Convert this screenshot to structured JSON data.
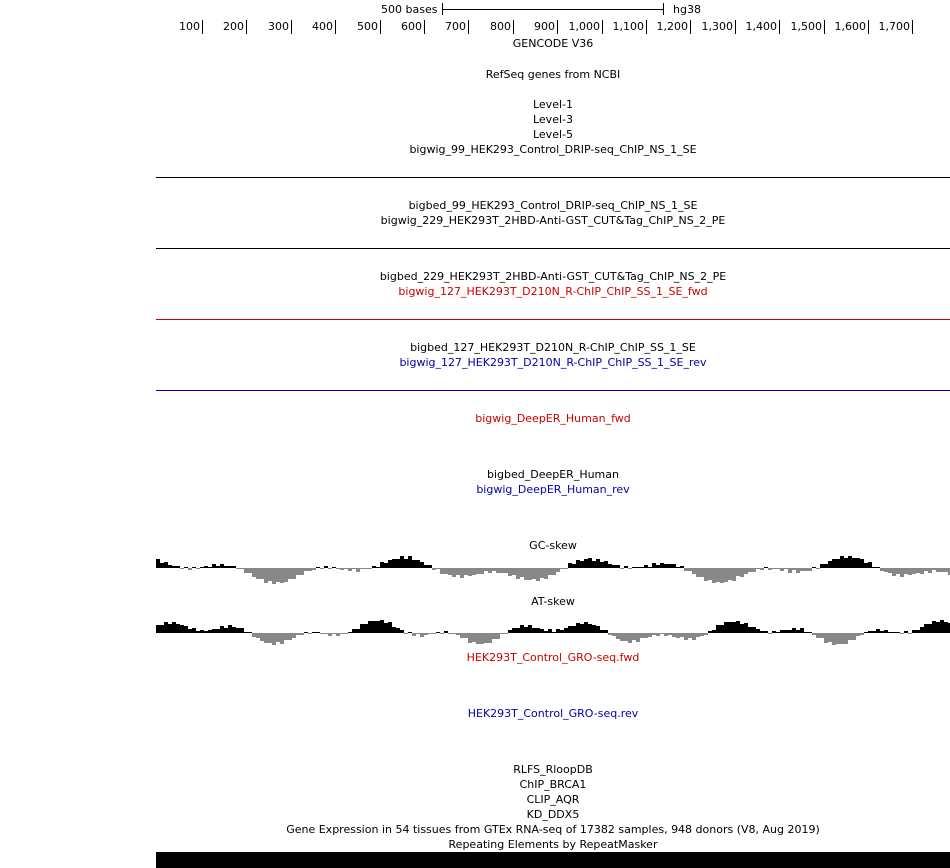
{
  "ruler": {
    "scale_label": "500 bases",
    "assembly": "hg38",
    "ticks": [
      "100",
      "200",
      "300",
      "400",
      "500",
      "600",
      "700",
      "800",
      "900",
      "1,000",
      "1,100",
      "1,200",
      "1,300",
      "1,400",
      "1,500",
      "1,600",
      "1,700"
    ]
  },
  "tracks": {
    "gencode": "GENCODE V36",
    "refseq": "RefSeq genes from NCBI",
    "level1": "Level-1",
    "level3": "Level-3",
    "level5": "Level-5",
    "bw99": "bigwig_99_HEK293_Control_DRIP-seq_ChIP_NS_1_SE",
    "bb99": "bigbed_99_HEK293_Control_DRIP-seq_ChIP_NS_1_SE",
    "bw229": "bigwig_229_HEK293T_2HBD-Anti-GST_CUT&Tag_ChIP_NS_2_PE",
    "bb229": "bigbed_229_HEK293T_2HBD-Anti-GST_CUT&Tag_ChIP_NS_2_PE",
    "bw127fwd": "bigwig_127_HEK293T_D210N_R-ChIP_ChIP_SS_1_SE_fwd",
    "bb127": "bigbed_127_HEK293T_D210N_R-ChIP_ChIP_SS_1_SE",
    "bw127rev": "bigwig_127_HEK293T_D210N_R-ChIP_ChIP_SS_1_SE_rev",
    "deeper_fwd": "bigwig_DeepER_Human_fwd",
    "deeper_bb": "bigbed_DeepER_Human",
    "deeper_rev": "bigwig_DeepER_Human_rev",
    "gc_skew": "GC-skew",
    "at_skew": "AT-skew",
    "gro_fwd": "HEK293T_Control_GRO-seq.fwd",
    "gro_rev": "HEK293T_Control_GRO-seq.rev",
    "rlfs": "RLFS_RloopDB",
    "brca1": "ChIP_BRCA1",
    "aqr": "CLIP_AQR",
    "ddx5": "KD_DDX5",
    "gtex": "Gene Expression in 54 tissues from GTEx RNA-seq of 17382 samples, 948 donors (V8, Aug 2019)",
    "rmsk": "Repeating Elements by RepeatMasker"
  },
  "colors": {
    "black": "#000000",
    "fwd_red": "#cc0000",
    "rev_blue": "#0000aa",
    "negative_gray": "#888888"
  }
}
